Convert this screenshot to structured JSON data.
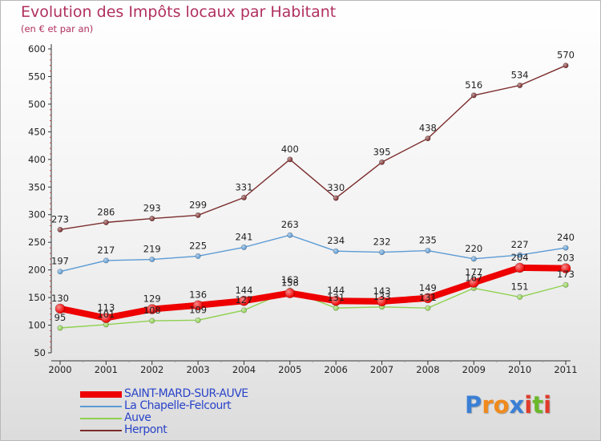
{
  "title": "Evolution des Impôts locaux par Habitant",
  "subtitle": "(en € et par an)",
  "logo": {
    "text": "Proxiti",
    "letters": [
      {
        "ch": "P",
        "color": "#3a7fd5"
      },
      {
        "ch": "r",
        "color": "#f08a1c"
      },
      {
        "ch": "o",
        "color": "#f08a1c"
      },
      {
        "ch": "x",
        "color": "#3a7fd5"
      },
      {
        "ch": "i",
        "color": "#e03b2a"
      },
      {
        "ch": "t",
        "color": "#6bb82a"
      },
      {
        "ch": "i",
        "color": "#e03b2a"
      }
    ]
  },
  "chart_data": {
    "type": "line",
    "title": "Evolution des Impôts locaux par Habitant",
    "subtitle": "(en € et par an)",
    "xlabel": "",
    "ylabel": "",
    "x": [
      "2000",
      "2001",
      "2002",
      "2003",
      "2004",
      "2005",
      "2006",
      "2007",
      "2008",
      "2009",
      "2010",
      "2011"
    ],
    "ylim": [
      50,
      600
    ],
    "yticks": [
      "50",
      "100",
      "150",
      "200",
      "250",
      "300",
      "350",
      "400",
      "450",
      "500",
      "550",
      "600"
    ],
    "grid": false,
    "legend": "bottom-left",
    "series": [
      {
        "name": "SAINT-MARD-SUR-AUVE",
        "color": "#ee0000",
        "values": [
          130,
          113,
          129,
          136,
          144,
          158,
          144,
          143,
          149,
          177,
          204,
          203
        ],
        "labels": [
          "130",
          "113",
          "129",
          "136",
          "144",
          "158",
          "144",
          "143",
          "149",
          "177",
          "204",
          "203"
        ]
      },
      {
        "name": "La Chapelle-Felcourt",
        "color": "#5b9bd5",
        "values": [
          197,
          217,
          219,
          225,
          241,
          263,
          234,
          232,
          235,
          220,
          227,
          240
        ],
        "labels": [
          "197",
          "217",
          "219",
          "225",
          "241",
          "263",
          "234",
          "232",
          "235",
          "220",
          "227",
          "240"
        ]
      },
      {
        "name": "Auve",
        "color": "#8fd14f",
        "values": [
          95,
          101,
          108,
          109,
          127,
          163,
          131,
          133,
          131,
          167,
          151,
          173
        ],
        "labels": [
          "95",
          "101",
          "108",
          "109",
          "127",
          "163",
          "131",
          "133",
          "131",
          "167",
          "151",
          "173"
        ]
      },
      {
        "name": "Herpont",
        "color": "#7b2c2c",
        "values": [
          273,
          286,
          293,
          299,
          331,
          400,
          330,
          395,
          438,
          516,
          534,
          570
        ],
        "labels": [
          "273",
          "286",
          "293",
          "299",
          "331",
          "400",
          "330",
          "395",
          "438",
          "516",
          "534",
          "570"
        ]
      }
    ]
  }
}
